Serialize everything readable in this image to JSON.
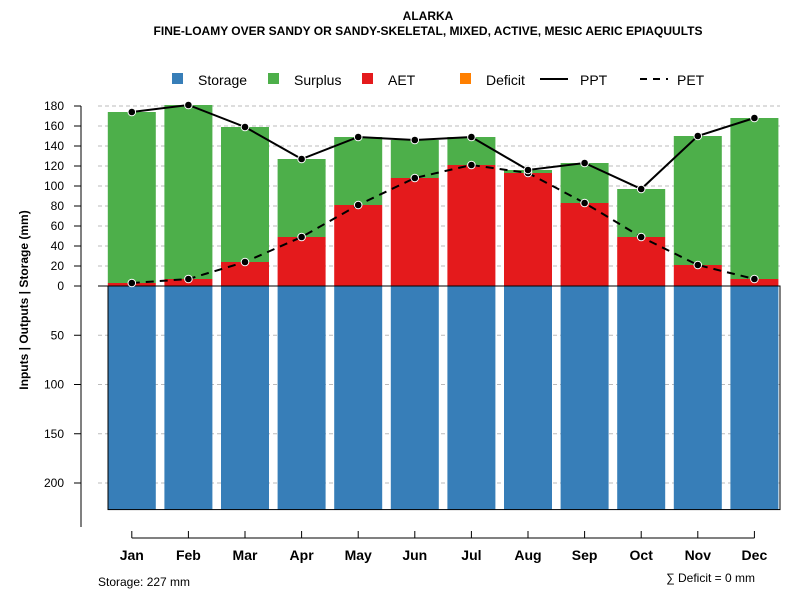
{
  "chart_data": {
    "type": "bar",
    "title": "ALARKA",
    "subtitle": "FINE-LOAMY OVER SANDY OR SANDY-SKELETAL, MIXED, ACTIVE, MESIC AERIC EPIAQUULTS",
    "ylabel": "Inputs | Outputs | Storage    (mm)",
    "categories": [
      "Jan",
      "Feb",
      "Mar",
      "Apr",
      "May",
      "Jun",
      "Jul",
      "Aug",
      "Sep",
      "Oct",
      "Nov",
      "Dec"
    ],
    "ylim_upper": [
      0,
      180
    ],
    "ylim_lower": [
      0,
      227
    ],
    "upper_ticks": [
      "0",
      "20",
      "40",
      "60",
      "80",
      "100",
      "120",
      "140",
      "160",
      "180"
    ],
    "lower_ticks": [
      "50",
      "100",
      "150",
      "200"
    ],
    "legend": [
      {
        "label": "Storage",
        "kind": "box",
        "color": "#377EB8"
      },
      {
        "label": "Surplus",
        "kind": "box",
        "color": "#4DAF4A"
      },
      {
        "label": "AET",
        "kind": "box",
        "color": "#E41A1C"
      },
      {
        "label": "Deficit",
        "kind": "box",
        "color": "#FF7F00"
      },
      {
        "label": "PPT",
        "kind": "solid",
        "color": "#000000"
      },
      {
        "label": "PET",
        "kind": "dashed",
        "color": "#000000"
      }
    ],
    "series": [
      {
        "name": "Storage",
        "values": [
          227,
          227,
          227,
          227,
          227,
          227,
          227,
          227,
          227,
          227,
          227,
          227
        ]
      },
      {
        "name": "AET",
        "values": [
          3,
          7,
          24,
          49,
          81,
          108,
          121,
          113,
          83,
          49,
          21,
          7
        ]
      },
      {
        "name": "Surplus",
        "values": [
          171,
          174,
          135,
          78,
          68,
          38,
          28,
          3,
          40,
          48,
          129,
          161
        ]
      },
      {
        "name": "Deficit",
        "values": [
          0,
          0,
          0,
          0,
          0,
          0,
          0,
          0,
          0,
          0,
          0,
          0
        ]
      },
      {
        "name": "PPT",
        "values": [
          174,
          181,
          159,
          127,
          149,
          146,
          149,
          116,
          123,
          97,
          150,
          168
        ]
      },
      {
        "name": "PET",
        "values": [
          3,
          7,
          24,
          49,
          81,
          108,
          121,
          113,
          83,
          49,
          21,
          7
        ]
      }
    ],
    "storage_label": "Storage: 227 mm",
    "deficit_label": "∑ Deficit = 0 mm"
  }
}
